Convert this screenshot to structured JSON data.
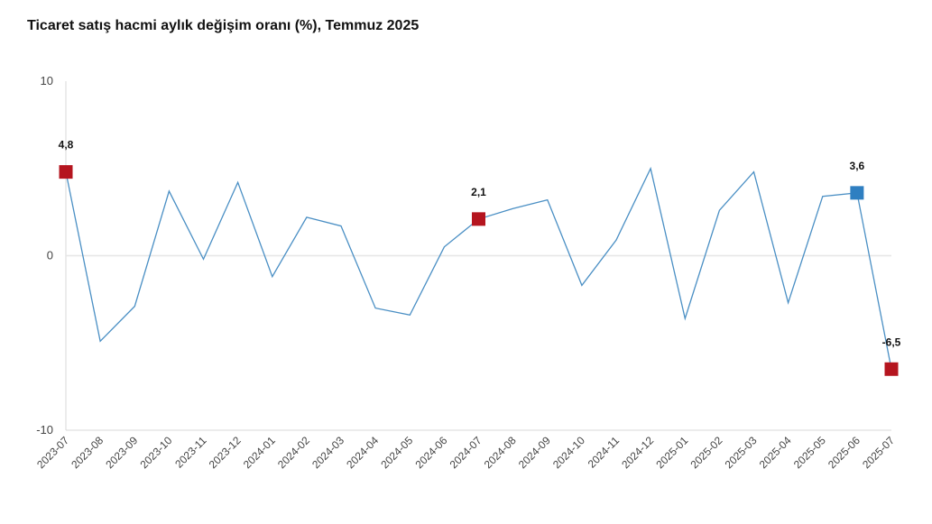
{
  "title": "Ticaret satış hacmi aylık değişim oranı (%), Temmuz 2025",
  "colors": {
    "line": "#4a8fc4",
    "highlight_red": "#b5151f",
    "highlight_blue": "#2f7fc1",
    "zero_line": "#e6e6e6",
    "axis": "#d8d8d8"
  },
  "chart_data": {
    "type": "line",
    "title": "Ticaret satış hacmi aylık değişim oranı (%), Temmuz 2025",
    "xlabel": "",
    "ylabel": "",
    "ylim": [
      -10,
      10
    ],
    "yticks": [
      "10",
      "0",
      "-10"
    ],
    "yticks_values": [
      10,
      0,
      -10
    ],
    "grid": false,
    "x": [
      "2023-07",
      "2023-08",
      "2023-09",
      "2023-10",
      "2023-11",
      "2023-12",
      "2024-01",
      "2024-02",
      "2024-03",
      "2024-04",
      "2024-05",
      "2024-06",
      "2024-07",
      "2024-08",
      "2024-09",
      "2024-10",
      "2024-11",
      "2024-12",
      "2025-01",
      "2025-02",
      "2025-03",
      "2025-04",
      "2025-05",
      "2025-06",
      "2025-07"
    ],
    "series": [
      {
        "values": [
          4.8,
          -4.9,
          -2.9,
          3.7,
          -0.2,
          4.2,
          -1.2,
          2.2,
          1.7,
          -3.0,
          -3.4,
          0.5,
          2.1,
          2.7,
          3.2,
          -1.7,
          0.9,
          5.0,
          -3.6,
          2.6,
          4.8,
          -2.7,
          3.4,
          3.6,
          -6.5
        ]
      }
    ],
    "highlights": [
      {
        "index": 0,
        "label": "4,8",
        "color": "#b5151f"
      },
      {
        "index": 12,
        "label": "2,1",
        "color": "#b5151f"
      },
      {
        "index": 23,
        "label": "3,6",
        "color": "#2f7fc1"
      },
      {
        "index": 24,
        "label": "-6,5",
        "color": "#b5151f"
      }
    ]
  }
}
